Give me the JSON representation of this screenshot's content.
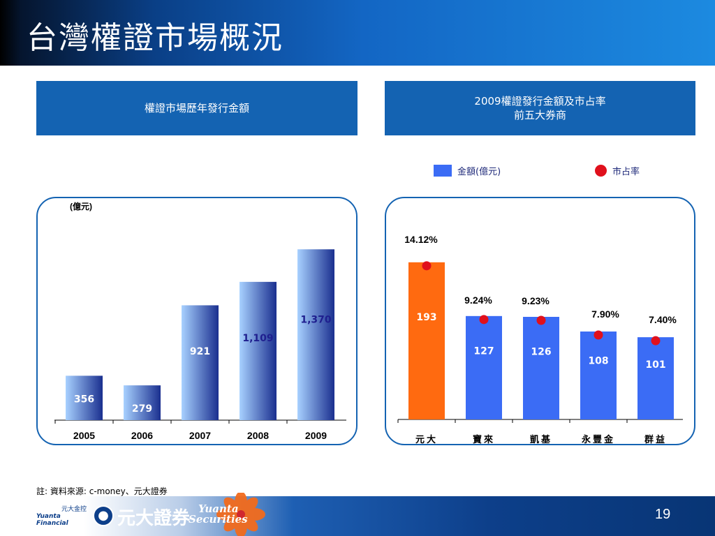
{
  "title": "台灣權證市場概況",
  "left_panel": {
    "header": "權證市場歷年發行金額",
    "unit": "(億元)"
  },
  "right_panel": {
    "header_line1": "2009權證發行金額及市占率",
    "header_line2": "前五大券商",
    "legend_amount": "金額(億元)",
    "legend_share": "市占率"
  },
  "chart_data": [
    {
      "type": "bar",
      "categories": [
        "2005",
        "2006",
        "2007",
        "2008",
        "2009"
      ],
      "values": [
        356,
        279,
        921,
        1109,
        1370
      ],
      "value_labels": [
        "356",
        "279",
        "921",
        "1,109",
        "1,370"
      ],
      "ylabel": "(億元)",
      "ylim": [
        0,
        1500
      ],
      "grid": false,
      "colors": {
        "light": "#a8d1ff",
        "dark": "#1a2f8f"
      }
    },
    {
      "type": "bar",
      "categories": [
        "元大",
        "寶來",
        "凱基",
        "永豐金",
        "群益"
      ],
      "series": [
        {
          "name": "金額(億元)",
          "values": [
            193,
            127,
            126,
            108,
            101
          ],
          "colors": [
            "#ff6a10",
            "#3b6cf5",
            "#3b6cf5",
            "#3b6cf5",
            "#3b6cf5"
          ]
        },
        {
          "name": "市占率",
          "values": [
            14.12,
            9.24,
            9.23,
            7.9,
            7.4
          ],
          "labels": [
            "14.12%",
            "9.24%",
            "9.23%",
            "7.90%",
            "7.40%"
          ],
          "color": "#e0101c"
        }
      ],
      "ylim": [
        0,
        210
      ],
      "legend": "top",
      "grid": false
    }
  ],
  "footnote": "註: 資料來源: c-money、元大證券",
  "footer": {
    "fin_logo_cn": "元大金控",
    "fin_logo_en": "Yuanta Financial",
    "brand_cn": "元大證券",
    "brand_en_line1": "Yuanta",
    "brand_en_line2": "Securities",
    "page_number": "19"
  }
}
